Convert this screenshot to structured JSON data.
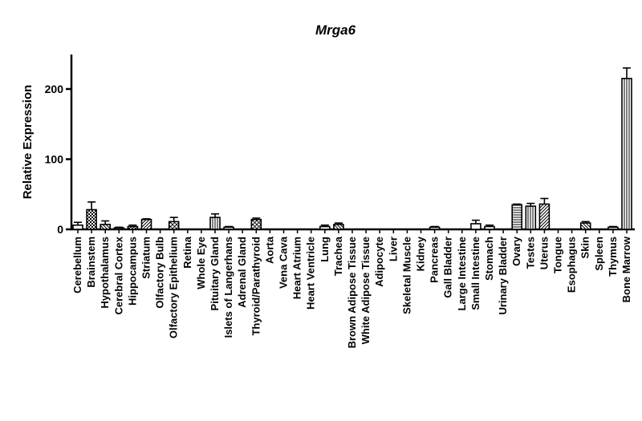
{
  "chart_data": {
    "type": "bar",
    "title": "Mrga6",
    "ylabel": "Relative Expression",
    "xlabel": "",
    "ylim": [
      0,
      250
    ],
    "yticks": [
      0,
      100,
      200
    ],
    "grid": false,
    "categories": [
      "Cerebellum",
      "Brainstem",
      "Hypothalamus",
      "Cerebral Cortex",
      "Hippocampus",
      "Striatum",
      "Olfactory Bulb",
      "Olfactory Epithelium",
      "Retina",
      "Whole Eye",
      "Pituitary Gland",
      "Islets of Langerhans",
      "Adrenal Gland",
      "Thyroid/Parathyroid",
      "Aorta",
      "Vena Cava",
      "Heart Atrium",
      "Heart Ventricle",
      "Lung",
      "Trachea",
      "Brown Adipose Tissue",
      "White Adipose Tissue",
      "Adipocyte",
      "Liver",
      "Skeletal Muscle",
      "Kidney",
      "Pancreas",
      "Gall Bladder",
      "Large Intestine",
      "Small Intestine",
      "Stomach",
      "Urinary Bladder",
      "Ovary",
      "Testes",
      "Uterus",
      "Tongue",
      "Esophagus",
      "Skin",
      "Spleen",
      "Thymus",
      "Bone Marrow"
    ],
    "values": [
      6,
      28,
      7,
      2,
      4,
      14,
      0,
      11,
      0,
      0,
      17,
      3,
      0,
      14,
      0,
      0,
      0,
      0,
      4,
      7,
      0,
      0,
      0,
      0,
      0,
      0,
      3,
      0,
      0,
      8,
      4,
      0,
      35,
      33,
      36,
      0,
      0,
      9,
      0,
      3,
      215
    ],
    "errors": [
      4,
      11,
      5,
      1,
      2,
      1,
      0,
      6,
      0,
      0,
      5,
      1,
      0,
      2,
      0,
      0,
      0,
      0,
      2,
      2,
      0,
      0,
      0,
      0,
      0,
      0,
      1,
      0,
      0,
      5,
      2,
      0,
      1,
      4,
      8,
      0,
      0,
      2,
      0,
      1,
      15
    ],
    "patterns": [
      "none",
      "check",
      "hatch-left",
      "none",
      "check",
      "hatch-right",
      "none",
      "xcross",
      "none",
      "none",
      "vlines",
      "none",
      "none",
      "xcross",
      "none",
      "none",
      "none",
      "none",
      "none",
      "hatch-left",
      "none",
      "none",
      "none",
      "none",
      "none",
      "none",
      "none",
      "none",
      "none",
      "none",
      "none",
      "none",
      "hlines",
      "vlines",
      "hatch-right",
      "none",
      "none",
      "hatch-left",
      "none",
      "none",
      "vlines"
    ]
  }
}
